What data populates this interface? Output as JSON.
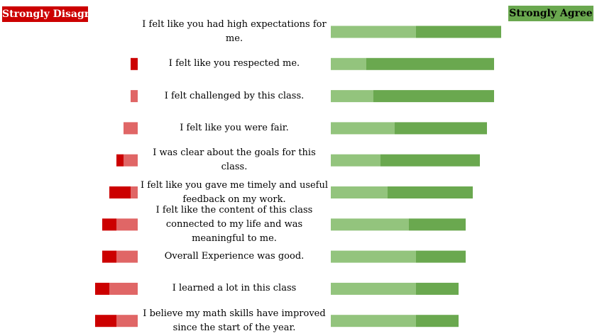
{
  "legend": {
    "negative_label": "Strongly Disagree",
    "positive_label": "Strongly Agree"
  },
  "colors": {
    "strongly_disagree": "#cc0000",
    "disagree": "#e06666",
    "agree": "#93c47d",
    "strongly_agree": "#6aa84f"
  },
  "chart_data": {
    "type": "bar",
    "orientation": "horizontal",
    "stacked": "diverging",
    "categories": [
      "I felt like you had high expectations for me.",
      "I felt like you respected me.",
      "I felt challenged by this class.",
      "I felt like you were fair.",
      "I was clear about the goals for this class.",
      "I felt like you gave me timely and useful feedback on my work.",
      "I felt like the content of this class connected to my life and was meaningful to me.",
      "Overall Experience was good.",
      "I learned a lot in this class",
      "I believe my math skills have improved since the start of the year."
    ],
    "series": [
      {
        "name": "Strongly Disagree",
        "side": "negative",
        "values": [
          0,
          1,
          0,
          0,
          1,
          3,
          2,
          2,
          2,
          3
        ]
      },
      {
        "name": "",
        "side": "negative",
        "values": [
          0,
          0,
          1,
          2,
          2,
          1,
          3,
          3,
          4,
          3
        ]
      },
      {
        "name": "",
        "side": "positive",
        "values": [
          12,
          5,
          6,
          9,
          7,
          8,
          11,
          12,
          12,
          12
        ]
      },
      {
        "name": "Strongly Agree",
        "side": "positive",
        "values": [
          12,
          18,
          17,
          13,
          14,
          12,
          8,
          7,
          6,
          6
        ]
      }
    ],
    "legend_position": "top",
    "grid": false
  }
}
